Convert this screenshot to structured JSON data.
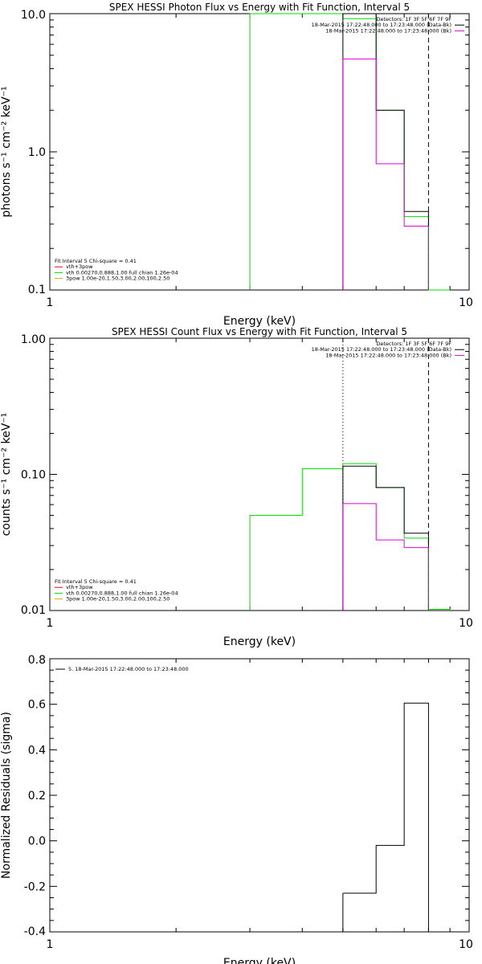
{
  "colors": {
    "background": "#ffffff",
    "axes": "#000000",
    "data": "#000000",
    "model_total": "#00dd00",
    "background_model": "#dd00dd",
    "component_red": "#ff0000",
    "component_yellow": "#ddaa00"
  },
  "chart_data": [
    {
      "type": "line",
      "title": "SPEX HESSI Photon Flux vs Energy with Fit Function, Interval 5",
      "xlabel": "Energy (keV)",
      "ylabel": "photons s⁻¹ cm⁻² keV⁻¹",
      "xscale": "log",
      "yscale": "log",
      "xlim": [
        1,
        10
      ],
      "ylim": [
        0.1,
        10
      ],
      "x_tick_labels": [
        "1",
        "10"
      ],
      "y_tick_labels": [
        "10.0",
        "1.0",
        "0.1"
      ],
      "y_ticks": [
        10,
        1,
        0.1
      ],
      "vlines": [
        {
          "x": 8.0,
          "style": "dashed"
        }
      ],
      "legend_top_right": [
        {
          "text": "Detectors: 1F 3F 5F 6F 7F 9F",
          "color": "#000000"
        },
        {
          "text": "18-Mar-2015 17:22:48.000 to 17:23:48.000 (Data-Bk)",
          "color": "#000000"
        },
        {
          "text": "18-Mar-2015 17:22:48.000 to 17:23:48.000 (Bk)",
          "color": "#dd00dd"
        }
      ],
      "legend_bottom_left": [
        {
          "text": "Fit Interval 5   Chi-square = 0.41",
          "color": "#000000"
        },
        {
          "text": "vth+3pow",
          "color": "#ff0000"
        },
        {
          "text": "vth 0.00270,0.888,1.00  full chian 1.26e-04",
          "color": "#00dd00"
        },
        {
          "text": "3pow 1.00e-20,1.50,3.00,2.00,100,2.50",
          "color": "#ddaa00"
        }
      ],
      "series": [
        {
          "color": "#00dd00",
          "edges": [
            3,
            5,
            6,
            7,
            8,
            9
          ],
          "values": [
            11,
            9.2,
            2.0,
            0.34,
            0.1
          ]
        },
        {
          "color": "#000000",
          "edges": [
            5,
            6,
            7,
            8
          ],
          "values": [
            10.0,
            2.0,
            0.37
          ]
        },
        {
          "color": "#dd00dd",
          "edges": [
            5,
            6,
            7,
            8
          ],
          "values": [
            4.7,
            0.82,
            0.29
          ]
        }
      ]
    },
    {
      "type": "line",
      "title": "SPEX HESSI Count Flux vs Energy with Fit Function, Interval 5",
      "xlabel": "Energy (keV)",
      "ylabel": "counts s⁻¹ cm⁻² keV⁻¹",
      "xscale": "log",
      "yscale": "log",
      "xlim": [
        1,
        10
      ],
      "ylim": [
        0.01,
        1
      ],
      "x_tick_labels": [
        "1",
        "10"
      ],
      "y_tick_labels": [
        "1.00",
        "0.10",
        "0.01"
      ],
      "y_ticks": [
        1,
        0.1,
        0.01
      ],
      "vlines": [
        {
          "x": 5.0,
          "style": "dotted"
        },
        {
          "x": 8.0,
          "style": "dashed"
        }
      ],
      "legend_top_right": [
        {
          "text": "Detectors: 1F 3F 5F 6F 7F 9F",
          "color": "#000000"
        },
        {
          "text": "18-Mar-2015 17:22:48.000 to 17:23:48.000 (Data-Bk)",
          "color": "#000000"
        },
        {
          "text": "18-Mar-2015 17:22:48.000 to 17:23:48.000 (Bk)",
          "color": "#dd00dd"
        }
      ],
      "legend_bottom_left": [
        {
          "text": "Fit Interval 5   Chi-square = 0.41",
          "color": "#000000"
        },
        {
          "text": "vth+3pow",
          "color": "#ff0000"
        },
        {
          "text": "vth 0.00270,0.888,1.00  full chian 1.26e-04",
          "color": "#00dd00"
        },
        {
          "text": "3pow 1.00e-20,1.50,3.00,2.00,100,2.50",
          "color": "#ddaa00"
        }
      ],
      "series": [
        {
          "color": "#00dd00",
          "edges": [
            3,
            4,
            5,
            6,
            7,
            8,
            9
          ],
          "values": [
            0.05,
            0.11,
            0.12,
            0.08,
            0.034,
            0.0102
          ]
        },
        {
          "color": "#000000",
          "edges": [
            5,
            6,
            7,
            8
          ],
          "values": [
            0.115,
            0.08,
            0.037
          ]
        },
        {
          "color": "#dd00dd",
          "edges": [
            5,
            6,
            7,
            8
          ],
          "values": [
            0.061,
            0.033,
            0.029
          ]
        }
      ]
    },
    {
      "type": "line",
      "xlabel": "Energy (keV)",
      "ylabel": "Normalized Residuals (sigma)",
      "xscale": "log",
      "yscale": "linear",
      "xlim": [
        1,
        10
      ],
      "ylim": [
        -0.4,
        0.8
      ],
      "x_tick_labels": [
        "1",
        "10"
      ],
      "y_tick_labels": [
        "0.8",
        "0.6",
        "0.4",
        "0.2",
        "0.0",
        "-0.2",
        "-0.4"
      ],
      "y_ticks": [
        0.8,
        0.6,
        0.4,
        0.2,
        0.0,
        -0.2,
        -0.4
      ],
      "legend_top_left": [
        {
          "text": "5. 18-Mar-2015 17:22:48.000 to 17:23:48.000",
          "color": "#000000"
        }
      ],
      "series": [
        {
          "color": "#000000",
          "edges": [
            5,
            6,
            7,
            8
          ],
          "values": [
            -0.23,
            -0.02,
            0.605
          ]
        }
      ]
    }
  ]
}
